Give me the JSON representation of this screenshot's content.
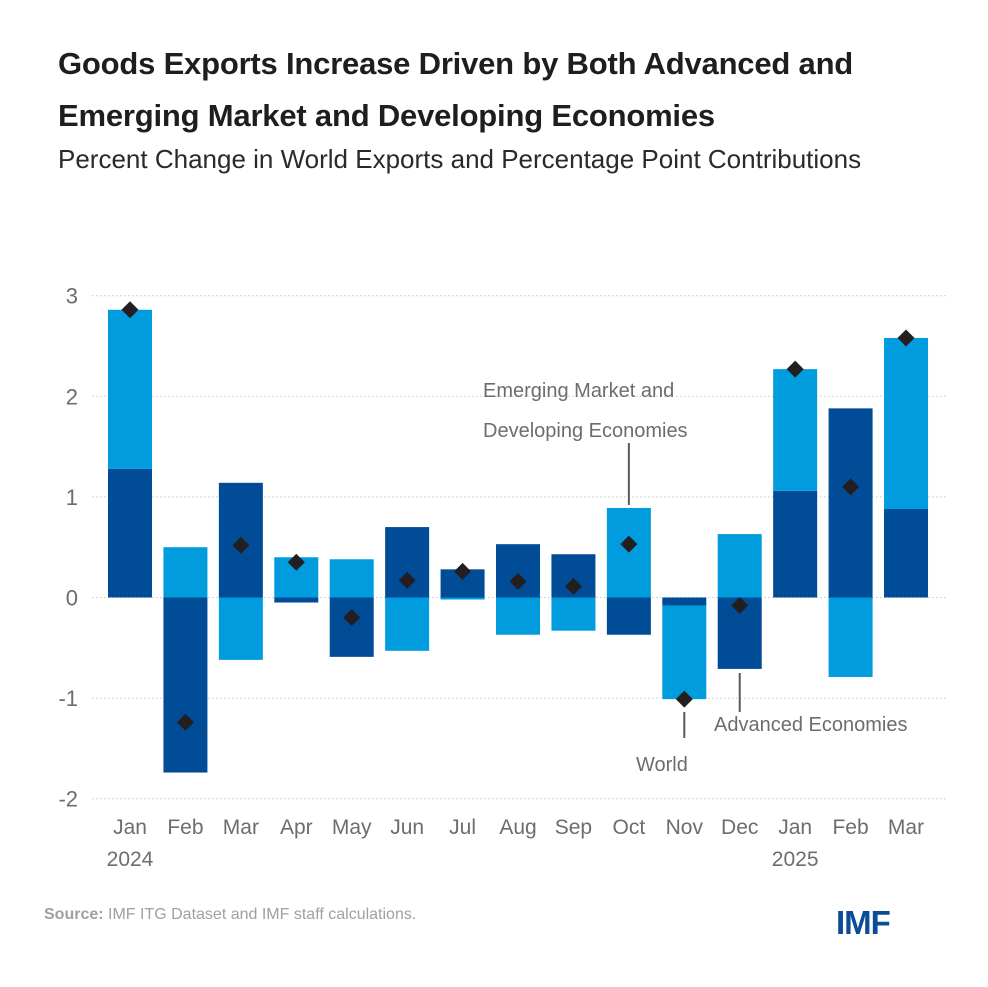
{
  "header": {
    "title": "Goods Exports Increase Driven by Both Advanced and Emerging Market and Developing Economies",
    "subtitle": "Percent Change in World Exports and Percentage Point Contributions"
  },
  "footer": {
    "source_label": "Source:",
    "source_text": " IMF ITG Dataset and IMF staff calculations.",
    "logo": "IMF"
  },
  "colors": {
    "advanced": "#004c97",
    "emerging": "#009cde",
    "world": "#231f20",
    "grid": "#c8c8c8",
    "axis_text": "#6d6d6d",
    "annotation_text": "#6d6d6d"
  },
  "chart_data": {
    "type": "bar",
    "stacked": true,
    "title": "Goods Exports Increase Driven by Both Advanced and Emerging Market and Developing Economies",
    "subtitle": "Percent Change in World Exports and Percentage Point Contributions",
    "xlabel": "",
    "ylabel": "",
    "ylim": [
      -2,
      3
    ],
    "yticks": [
      3,
      2,
      1,
      0,
      -1,
      -2
    ],
    "ytick_labels": [
      "3",
      "2",
      "1",
      "0",
      "-1",
      "-2"
    ],
    "grid": true,
    "categories": [
      "Jan",
      "Feb",
      "Mar",
      "Apr",
      "May",
      "Jun",
      "Jul",
      "Aug",
      "Sep",
      "Oct",
      "Nov",
      "Dec",
      "Jan",
      "Feb",
      "Mar"
    ],
    "year_labels": [
      {
        "index": 0,
        "label": "2024"
      },
      {
        "index": 12,
        "label": "2025"
      }
    ],
    "series": [
      {
        "name": "Advanced Economies",
        "kind": "bar",
        "values": [
          1.28,
          -1.74,
          1.14,
          -0.05,
          -0.59,
          0.7,
          0.28,
          0.53,
          0.43,
          -0.37,
          -0.08,
          -0.71,
          1.06,
          1.88,
          0.88
        ]
      },
      {
        "name": "Emerging Market and Developing Economies",
        "kind": "bar",
        "values": [
          1.58,
          0.5,
          -0.62,
          0.4,
          0.38,
          -0.53,
          -0.02,
          -0.37,
          -0.33,
          0.89,
          -0.93,
          0.63,
          1.21,
          -0.79,
          1.7
        ]
      },
      {
        "name": "World",
        "kind": "marker",
        "marker": "diamond",
        "values": [
          2.86,
          -1.24,
          0.52,
          0.35,
          -0.2,
          0.17,
          0.26,
          0.16,
          0.11,
          0.53,
          -1.01,
          -0.08,
          2.27,
          1.1,
          2.58
        ]
      }
    ],
    "annotations": [
      {
        "text_lines": [
          "Emerging Market and",
          "Developing Economies"
        ],
        "series": "Emerging Market and Developing Economies",
        "category_index": 9
      },
      {
        "text_lines": [
          "Advanced Economies"
        ],
        "series": "Advanced Economies",
        "category_index": 11
      },
      {
        "text_lines": [
          "World"
        ],
        "series": "World",
        "category_index": 10
      }
    ],
    "legend": "none (inline annotations)"
  }
}
